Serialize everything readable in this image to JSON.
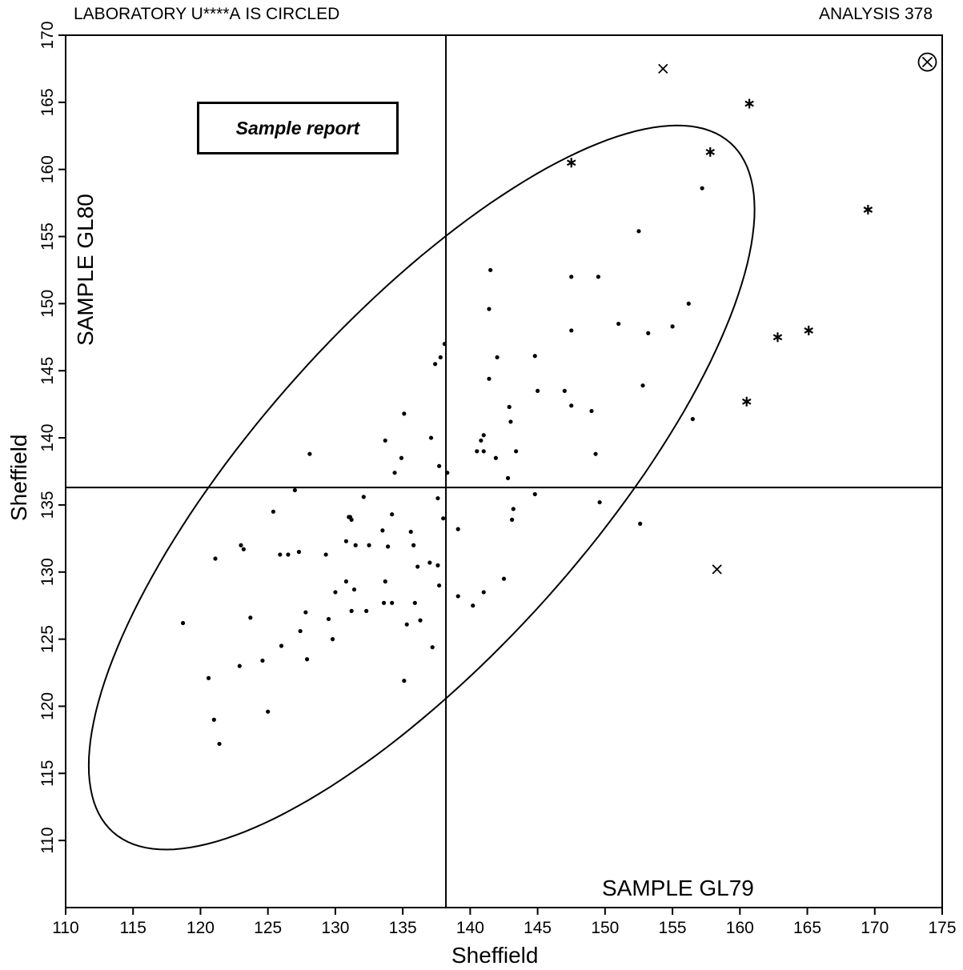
{
  "header": {
    "lab_prefix": "LABORATORY ",
    "lab_code": "U****A",
    "lab_suffix": " IS CIRCLED",
    "analysis": "ANALYSIS 378"
  },
  "sample_report_label": "Sample report",
  "chart_data": {
    "type": "scatter",
    "xlabel": "Sheffield",
    "ylabel": "Sheffield",
    "x_sample_label": "SAMPLE GL79",
    "y_sample_label": "SAMPLE GL80",
    "xlim": [
      110,
      175
    ],
    "ylim": [
      105,
      170
    ],
    "xticks": [
      110,
      115,
      120,
      125,
      130,
      135,
      140,
      145,
      150,
      155,
      160,
      165,
      170,
      175
    ],
    "yticks": [
      110,
      115,
      120,
      125,
      130,
      135,
      140,
      145,
      150,
      155,
      160,
      165,
      170
    ],
    "median_x": 138.2,
    "median_y": 136.3,
    "ellipse": {
      "center": [
        136.4,
        136.3
      ],
      "semi_major": 34.4,
      "semi_minor": 12.4,
      "rotation_deg": 48.3
    },
    "series": [
      {
        "marker": "dot",
        "points": [
          [
            118.7,
            126.2
          ],
          [
            120.6,
            122.1
          ],
          [
            121.0,
            119.0
          ],
          [
            121.1,
            131.0
          ],
          [
            121.4,
            117.2
          ],
          [
            122.9,
            123.0
          ],
          [
            123.0,
            132.0
          ],
          [
            123.2,
            131.7
          ],
          [
            123.7,
            126.6
          ],
          [
            124.6,
            123.4
          ],
          [
            125.0,
            119.6
          ],
          [
            125.4,
            134.5
          ],
          [
            125.9,
            131.3
          ],
          [
            126.0,
            124.5
          ],
          [
            126.5,
            131.3
          ],
          [
            127.0,
            136.1
          ],
          [
            127.3,
            131.5
          ],
          [
            127.4,
            125.6
          ],
          [
            127.8,
            127.0
          ],
          [
            127.9,
            123.5
          ],
          [
            128.1,
            138.8
          ],
          [
            129.3,
            131.3
          ],
          [
            129.5,
            126.5
          ],
          [
            129.8,
            125.0
          ],
          [
            130.0,
            128.5
          ],
          [
            130.8,
            132.3
          ],
          [
            130.8,
            129.3
          ],
          [
            131.0,
            134.1
          ],
          [
            131.1,
            134.1
          ],
          [
            131.2,
            127.1
          ],
          [
            131.2,
            133.9
          ],
          [
            131.4,
            128.7
          ],
          [
            131.5,
            132.0
          ],
          [
            132.1,
            135.6
          ],
          [
            132.3,
            127.1
          ],
          [
            132.5,
            132.0
          ],
          [
            133.5,
            133.1
          ],
          [
            133.6,
            127.7
          ],
          [
            133.7,
            139.8
          ],
          [
            133.7,
            129.3
          ],
          [
            133.9,
            131.9
          ],
          [
            134.2,
            134.3
          ],
          [
            134.2,
            127.7
          ],
          [
            134.4,
            137.4
          ],
          [
            134.9,
            138.5
          ],
          [
            135.1,
            141.8
          ],
          [
            135.1,
            121.9
          ],
          [
            135.3,
            126.1
          ],
          [
            135.6,
            133.0
          ],
          [
            135.8,
            132.0
          ],
          [
            135.9,
            127.7
          ],
          [
            136.1,
            130.4
          ],
          [
            136.3,
            126.4
          ],
          [
            137.0,
            130.7
          ],
          [
            137.1,
            140.0
          ],
          [
            137.2,
            124.4
          ],
          [
            137.4,
            145.5
          ],
          [
            137.6,
            135.5
          ],
          [
            137.6,
            130.5
          ],
          [
            137.7,
            137.9
          ],
          [
            137.7,
            129.0
          ],
          [
            137.8,
            146.0
          ],
          [
            138.0,
            134.0
          ],
          [
            138.1,
            147.0
          ],
          [
            138.3,
            137.4
          ],
          [
            139.1,
            128.2
          ],
          [
            139.1,
            133.2
          ],
          [
            140.2,
            127.5
          ],
          [
            140.5,
            139.0
          ],
          [
            140.8,
            139.8
          ],
          [
            141.0,
            139.0
          ],
          [
            141.0,
            128.5
          ],
          [
            141.0,
            140.2
          ],
          [
            141.4,
            144.4
          ],
          [
            141.4,
            149.6
          ],
          [
            141.5,
            152.5
          ],
          [
            141.9,
            138.5
          ],
          [
            142.0,
            146.0
          ],
          [
            142.5,
            129.5
          ],
          [
            142.8,
            137.0
          ],
          [
            142.9,
            142.3
          ],
          [
            143.0,
            141.2
          ],
          [
            143.1,
            133.9
          ],
          [
            143.2,
            134.7
          ],
          [
            143.4,
            139.0
          ],
          [
            144.8,
            135.8
          ],
          [
            144.8,
            146.1
          ],
          [
            145.0,
            143.5
          ],
          [
            147.0,
            143.5
          ],
          [
            147.5,
            142.4
          ],
          [
            147.5,
            148.0
          ],
          [
            147.5,
            152.0
          ],
          [
            149.0,
            142.0
          ],
          [
            149.3,
            138.8
          ],
          [
            149.5,
            152.0
          ],
          [
            149.6,
            135.2
          ],
          [
            151.0,
            148.5
          ],
          [
            152.5,
            155.4
          ],
          [
            152.6,
            133.6
          ],
          [
            152.8,
            143.9
          ],
          [
            153.2,
            147.8
          ],
          [
            155.0,
            148.3
          ],
          [
            156.2,
            150.0
          ],
          [
            156.5,
            141.4
          ],
          [
            157.2,
            158.6
          ]
        ]
      },
      {
        "marker": "asterisk",
        "points": [
          [
            147.5,
            160.5
          ],
          [
            157.8,
            161.3
          ],
          [
            160.7,
            164.9
          ],
          [
            160.5,
            142.7
          ],
          [
            162.8,
            147.5
          ],
          [
            165.1,
            148.0
          ],
          [
            169.5,
            157.0
          ]
        ]
      },
      {
        "marker": "cross",
        "points": [
          [
            154.3,
            167.5
          ],
          [
            158.3,
            130.2
          ]
        ]
      },
      {
        "marker": "circled-cross",
        "points": [
          [
            173.9,
            168.0
          ]
        ]
      }
    ]
  }
}
